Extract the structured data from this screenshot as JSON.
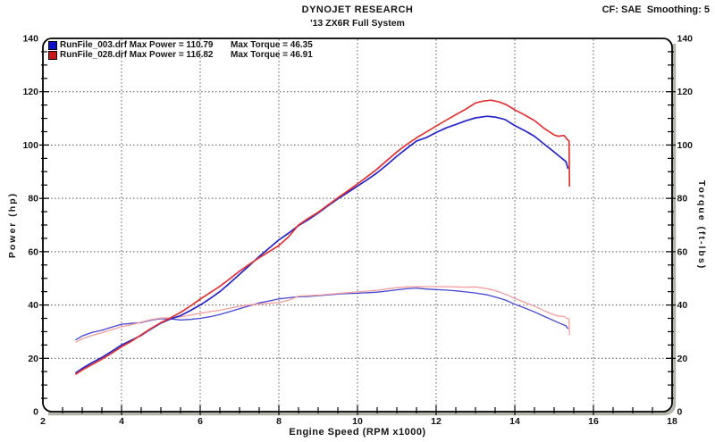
{
  "header": {
    "title": "DYNOJET RESEARCH",
    "subtitle": "'13 ZX6R Full System",
    "settings": "CF: SAE  Smoothing: 5"
  },
  "axes": {
    "x_label": "Engine Speed (RPM x1000)",
    "y_left_label": "Power (hp)",
    "y_right_label": "Torque (ft-lbs)"
  },
  "legend": {
    "rows": [
      {
        "power": "RunFile_003.drf Max Power = 110.79",
        "torque": "Max Torque = 46.35",
        "swatch": "#1010cc"
      },
      {
        "power": "RunFile_028.drf Max Power = 116.82",
        "torque": "Max Torque = 46.91",
        "swatch": "#cc1818"
      }
    ]
  },
  "chart_data": {
    "type": "line",
    "title": "DYNOJET RESEARCH",
    "subtitle": "'13 ZX6R Full System",
    "correction_note": "CF: SAE  Smoothing: 5",
    "xlabel": "Engine Speed (RPM x1000)",
    "ylabel_left": "Power (hp)",
    "ylabel_right": "Torque (ft-lbs)",
    "xlim": [
      2,
      18
    ],
    "ylim_left": [
      0,
      140
    ],
    "ylim_right": [
      0,
      140
    ],
    "x_major_ticks": [
      2,
      4,
      6,
      8,
      10,
      12,
      14,
      16,
      18
    ],
    "y_major_ticks": [
      0,
      20,
      40,
      60,
      80,
      100,
      120,
      140
    ],
    "x_minor_step": 0.5,
    "y_minor_step": 5,
    "grid": "dotted lines at major ticks",
    "legend_position": "top-left",
    "runs": [
      {
        "file": "RunFile_003.drf",
        "max_power_hp": 110.79,
        "max_torque_ftlbs": 46.35,
        "color": "blue"
      },
      {
        "file": "RunFile_028.drf",
        "max_power_hp": 116.82,
        "max_torque_ftlbs": 46.91,
        "color": "red"
      }
    ],
    "series": [
      {
        "name": "RunFile_003.drf Torque (ft-lbs)",
        "axis": "right",
        "color": "#4646d2",
        "width": 1.3,
        "rpm_x1000": [
          2.84,
          3.0,
          3.25,
          3.5,
          3.75,
          4.0,
          4.25,
          4.5,
          4.75,
          5.0,
          5.25,
          5.5,
          5.75,
          6.0,
          6.25,
          6.5,
          6.75,
          7.0,
          7.25,
          7.5,
          7.75,
          8.0,
          8.25,
          8.5,
          8.75,
          9.0,
          9.25,
          9.5,
          9.75,
          10.0,
          10.25,
          10.5,
          10.75,
          11.0,
          11.25,
          11.5,
          11.75,
          12.0,
          12.25,
          12.5,
          12.75,
          13.0,
          13.3,
          13.5,
          13.75,
          14.0,
          14.25,
          14.5,
          14.75,
          15.0,
          15.15,
          15.3,
          15.35
        ],
        "values": [
          27.0,
          28.4,
          29.7,
          30.5,
          31.7,
          32.8,
          33.1,
          33.4,
          34.3,
          34.9,
          34.8,
          34.4,
          34.6,
          35.0,
          35.6,
          36.4,
          37.5,
          38.6,
          39.7,
          40.8,
          41.5,
          42.3,
          42.7,
          43.1,
          43.2,
          43.5,
          43.8,
          44.1,
          44.3,
          44.4,
          44.6,
          44.8,
          45.2,
          45.7,
          46.1,
          46.35,
          46.0,
          45.8,
          45.6,
          45.3,
          44.9,
          44.5,
          43.8,
          43.0,
          41.9,
          40.3,
          38.9,
          37.4,
          35.7,
          34.1,
          33.1,
          32.2,
          31.2
        ]
      },
      {
        "name": "RunFile_028.drf Torque (ft-lbs)",
        "axis": "right",
        "color": "#f29e9e",
        "width": 1.3,
        "rpm_x1000": [
          2.84,
          3.0,
          3.25,
          3.5,
          3.75,
          4.0,
          4.25,
          4.5,
          4.75,
          5.0,
          5.25,
          5.5,
          5.75,
          6.0,
          6.25,
          6.5,
          6.75,
          7.0,
          7.25,
          7.5,
          7.75,
          8.0,
          8.25,
          8.5,
          8.75,
          9.0,
          9.25,
          9.5,
          9.75,
          10.0,
          10.25,
          10.5,
          10.75,
          11.0,
          11.25,
          11.5,
          11.75,
          12.0,
          12.25,
          12.5,
          12.75,
          13.0,
          13.2,
          13.4,
          13.6,
          13.8,
          14.0,
          14.25,
          14.5,
          14.75,
          15.0,
          15.1,
          15.25,
          15.33,
          15.38,
          15.39
        ],
        "values": [
          26.1,
          27.3,
          28.6,
          29.6,
          30.7,
          31.9,
          32.6,
          33.6,
          34.5,
          35.1,
          35.2,
          35.5,
          36.2,
          36.9,
          37.5,
          38.0,
          38.8,
          39.5,
          40.1,
          40.4,
          40.7,
          40.9,
          41.8,
          43.3,
          43.5,
          43.7,
          44.0,
          44.3,
          44.6,
          44.9,
          45.2,
          45.5,
          46.0,
          46.5,
          46.8,
          46.91,
          46.9,
          46.9,
          46.9,
          46.8,
          46.7,
          46.8,
          46.35,
          45.8,
          44.9,
          43.8,
          42.5,
          41.0,
          39.6,
          37.8,
          36.3,
          35.9,
          35.7,
          35.0,
          34.7,
          28.9
        ]
      },
      {
        "name": "RunFile_003.drf Power (hp)",
        "axis": "left",
        "color": "#2424c8",
        "width": 1.7,
        "rpm_x1000": [
          2.84,
          3.0,
          3.25,
          3.5,
          3.75,
          4.0,
          4.25,
          4.5,
          4.75,
          5.0,
          5.25,
          5.5,
          5.75,
          6.0,
          6.25,
          6.5,
          6.75,
          7.0,
          7.25,
          7.5,
          7.75,
          8.0,
          8.25,
          8.5,
          8.75,
          9.0,
          9.25,
          9.5,
          9.75,
          10.0,
          10.25,
          10.5,
          10.75,
          11.0,
          11.25,
          11.5,
          11.75,
          12.0,
          12.25,
          12.5,
          12.75,
          13.0,
          13.3,
          13.5,
          13.75,
          14.0,
          14.25,
          14.5,
          14.75,
          15.0,
          15.15,
          15.3,
          15.35
        ],
        "values": [
          14.6,
          16.2,
          18.4,
          20.3,
          22.6,
          25.0,
          26.8,
          28.6,
          31.0,
          33.2,
          34.8,
          36.0,
          37.9,
          40.0,
          42.4,
          45.0,
          48.2,
          51.5,
          54.8,
          58.2,
          61.3,
          64.4,
          67.0,
          69.8,
          72.0,
          74.5,
          77.2,
          79.8,
          82.2,
          84.6,
          87.0,
          89.6,
          92.6,
          95.8,
          98.7,
          101.5,
          102.8,
          104.7,
          106.4,
          107.7,
          109.1,
          110.2,
          110.79,
          110.5,
          109.6,
          107.3,
          105.4,
          103.3,
          100.3,
          97.4,
          95.6,
          93.8,
          91.3
        ]
      },
      {
        "name": "RunFile_028.drf Power (hp)",
        "axis": "left",
        "color": "#e03434",
        "width": 1.7,
        "rpm_x1000": [
          2.84,
          3.0,
          3.25,
          3.5,
          3.75,
          4.0,
          4.25,
          4.5,
          4.75,
          5.0,
          5.25,
          5.5,
          5.75,
          6.0,
          6.25,
          6.5,
          6.75,
          7.0,
          7.25,
          7.5,
          7.75,
          8.0,
          8.25,
          8.5,
          8.75,
          9.0,
          9.25,
          9.5,
          9.75,
          10.0,
          10.25,
          10.5,
          10.75,
          11.0,
          11.25,
          11.5,
          11.75,
          12.0,
          12.25,
          12.5,
          12.75,
          13.0,
          13.2,
          13.4,
          13.6,
          13.8,
          14.0,
          14.25,
          14.5,
          14.75,
          15.0,
          15.1,
          15.25,
          15.33,
          15.38,
          15.39
        ],
        "values": [
          14.1,
          15.6,
          17.7,
          19.7,
          21.9,
          24.3,
          26.4,
          28.8,
          31.2,
          33.4,
          35.2,
          37.2,
          39.6,
          42.2,
          44.6,
          47.0,
          49.8,
          52.7,
          55.3,
          57.7,
          60.0,
          62.3,
          65.6,
          70.0,
          72.5,
          74.8,
          77.5,
          80.2,
          82.8,
          85.4,
          88.2,
          91.0,
          94.2,
          97.4,
          100.2,
          102.7,
          104.9,
          107.1,
          109.3,
          111.4,
          113.4,
          115.8,
          116.5,
          116.82,
          116.2,
          115.0,
          113.2,
          111.3,
          109.2,
          106.2,
          103.8,
          103.3,
          103.6,
          102.2,
          101.5,
          84.6
        ]
      }
    ],
    "colors": {
      "power_blue": "#2424c8",
      "power_red": "#e03434",
      "torque_blue": "#4646d2",
      "torque_red": "#f29e9e",
      "grid": "#555555",
      "frame": "#000000",
      "frame_shadow": "#b4b4aa",
      "text": "#141414"
    }
  }
}
